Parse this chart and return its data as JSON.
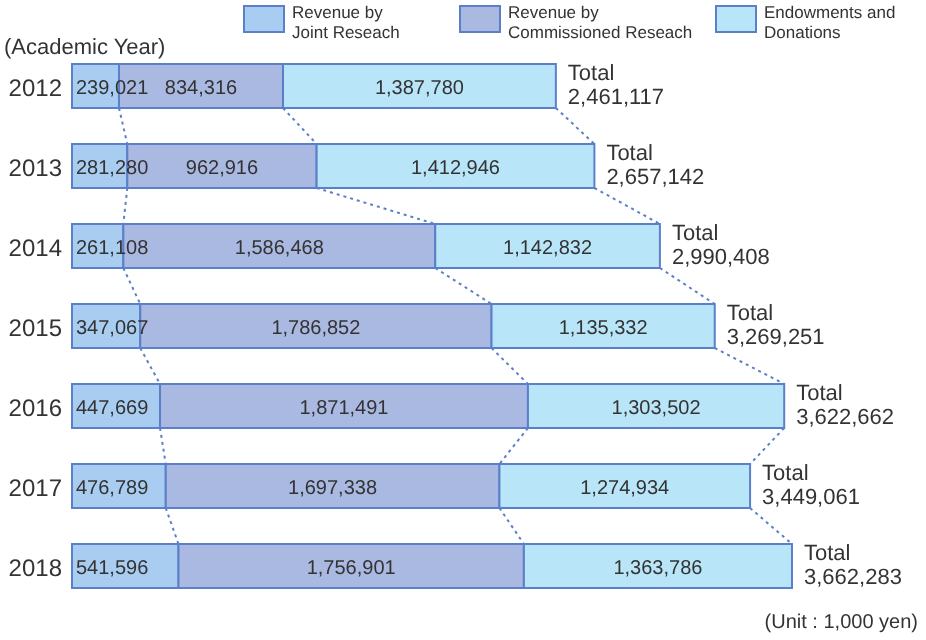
{
  "chart_data": {
    "type": "bar",
    "orientation": "horizontal",
    "stacked": true,
    "legend": "top right",
    "categories": [
      "2012",
      "2013",
      "2014",
      "2015",
      "2016",
      "2017",
      "2018"
    ],
    "series": [
      {
        "name": "Revenue by Joint Reseach",
        "color": "#a9cdf0",
        "values": [
          239021,
          281280,
          261108,
          347067,
          447669,
          476789,
          541596
        ],
        "value_labels": [
          "239,021",
          "281,280",
          "261,108",
          "347,067",
          "447,669",
          "476,789",
          "541,596"
        ]
      },
      {
        "name": "Revenue by Commissioned Reseach",
        "color": "#aab9e2",
        "values": [
          834316,
          962916,
          1586468,
          1786852,
          1871491,
          1697338,
          1756901
        ],
        "value_labels": [
          "834,316",
          "962,916",
          "1,586,468",
          "1,786,852",
          "1,871,491",
          "1,697,338",
          "1,756,901"
        ]
      },
      {
        "name": "Endowments and Donations",
        "color": "#b9e5f9",
        "values": [
          1387780,
          1412946,
          1142832,
          1135332,
          1303502,
          1274934,
          1363786
        ],
        "value_labels": [
          "1,387,780",
          "1,412,946",
          "1,142,832",
          "1,135,332",
          "1,303,502",
          "1,274,934",
          "1,363,786"
        ]
      }
    ],
    "totals": [
      "Total 2,461,117",
      "Total 2,657,142",
      "Total 2,990,408",
      "Total 3,269,251",
      "Total 3,622,662",
      "Total 3,449,061",
      "Total 3,662,283"
    ],
    "annotations": [
      "(Academic Year)",
      "(Unit : 1,000 yen)"
    ]
  }
}
